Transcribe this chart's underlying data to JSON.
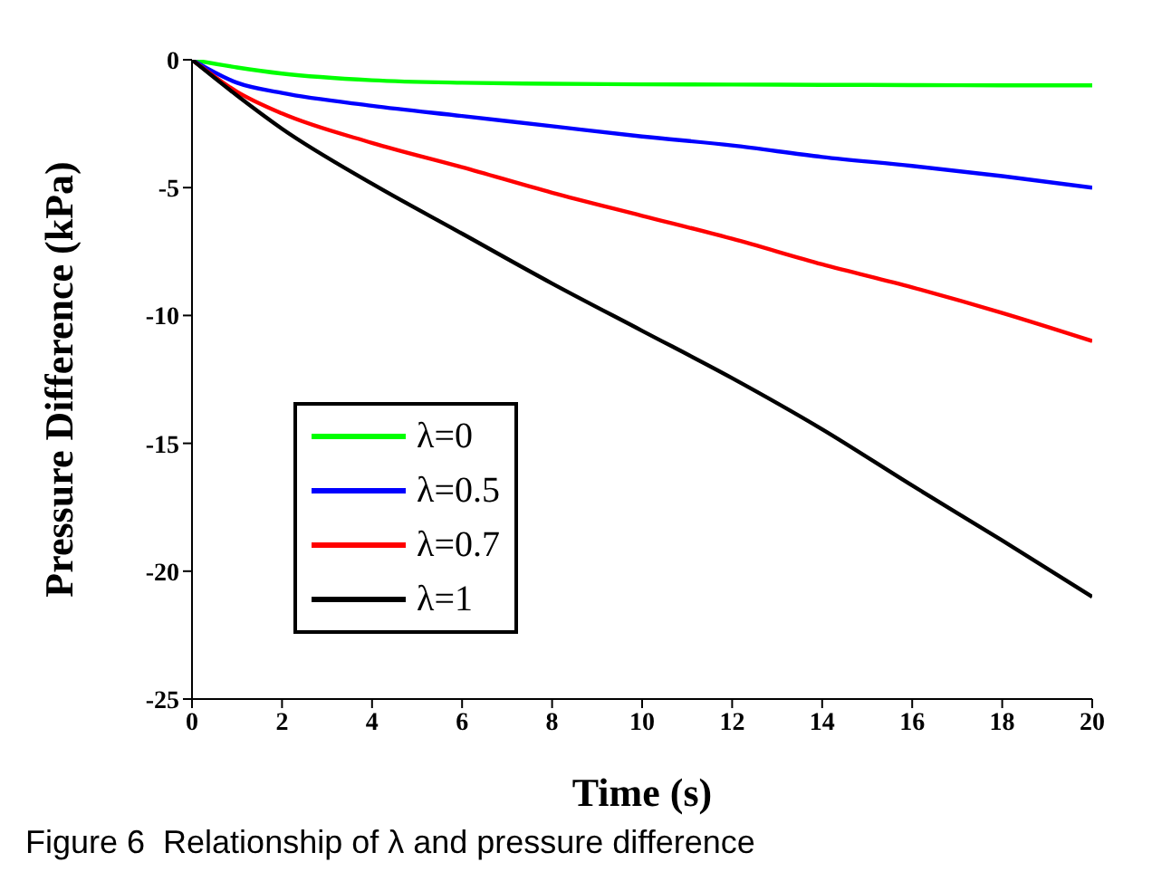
{
  "chart_data": {
    "type": "line",
    "xlabel": "Time (s)",
    "ylabel": "Pressure Difference (kPa)",
    "x": [
      0,
      1,
      2,
      4,
      6,
      8,
      10,
      12,
      14,
      16,
      18,
      20
    ],
    "series": [
      {
        "name": "λ=0",
        "color": "#00ff00",
        "values": [
          0,
          -0.3,
          -0.54,
          -0.8,
          -0.9,
          -0.94,
          -0.96,
          -0.97,
          -0.98,
          -0.99,
          -1,
          -1
        ]
      },
      {
        "name": "λ=0.5",
        "color": "#0000ff",
        "values": [
          0,
          -0.9,
          -1.3,
          -1.8,
          -2.2,
          -2.6,
          -3,
          -3.35,
          -3.8,
          -4.15,
          -4.55,
          -5
        ]
      },
      {
        "name": "λ=0.7",
        "color": "#ff0000",
        "values": [
          0,
          -1.25,
          -2.1,
          -3.25,
          -4.2,
          -5.2,
          -6.1,
          -7,
          -8,
          -8.9,
          -9.9,
          -11
        ]
      },
      {
        "name": "λ=1",
        "color": "#000000",
        "values": [
          0,
          -1.4,
          -2.7,
          -4.85,
          -6.8,
          -8.75,
          -10.6,
          -12.45,
          -14.45,
          -16.65,
          -18.8,
          -21
        ]
      }
    ],
    "xlim": [
      0,
      20
    ],
    "xticks": [
      0,
      2,
      4,
      6,
      8,
      10,
      12,
      14,
      16,
      18,
      20
    ],
    "ylim": [
      -25,
      0
    ],
    "yticks": [
      -25,
      -20,
      -15,
      -10,
      -5,
      0
    ],
    "grid": false,
    "legend": "bottom left",
    "marker": "none",
    "line_style": "solid",
    "annotations": [
      "Figure 6  Relationship of λ and pressure difference"
    ]
  }
}
